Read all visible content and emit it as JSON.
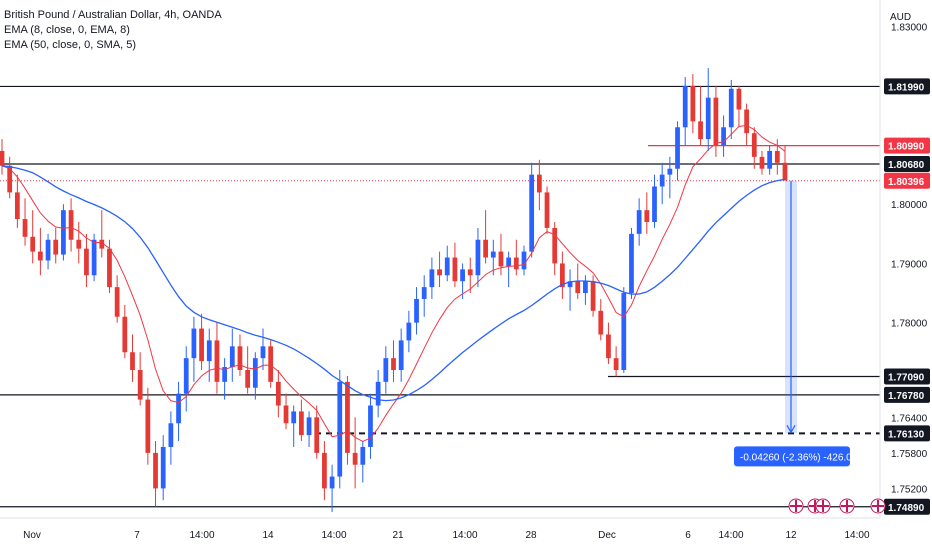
{
  "legend": {
    "title": "British Pound / Australian Dollar, 4h, OANDA",
    "ema1": "EMA (8, close, 0, EMA, 8)",
    "ema2": "EMA (50, close, 0, SMA, 5)"
  },
  "currency": "AUD",
  "colors": {
    "up": "#2962ff",
    "down": "#e53935",
    "ema_fast": "#f23645",
    "ema_slow": "#2962ff",
    "level": "#131722",
    "resistance_red": "#f23645",
    "measure": "#2962ff"
  },
  "chart_data": {
    "type": "candlestick",
    "symbol": "GBPAUD",
    "interval": "4h",
    "ylim": [
      1.747,
      1.8345
    ],
    "y_ticks": [
      "1.83000",
      "1.80000",
      "1.79000",
      "1.78000",
      "1.76400",
      "1.75800",
      "1.75200"
    ],
    "x_ticks": [
      "Nov",
      "7",
      "14:00",
      "14",
      "14:00",
      "21",
      "14:00",
      "28",
      "Dec",
      "6",
      "14:00",
      "12",
      "14:00"
    ],
    "price_levels": [
      {
        "label": "1.81990",
        "value": 1.8199,
        "style": "solid",
        "color": "dark"
      },
      {
        "label": "1.80990",
        "value": 1.8099,
        "style": "solid",
        "color": "red"
      },
      {
        "label": "1.80680",
        "value": 1.8068,
        "style": "solid",
        "color": "dark"
      },
      {
        "label": "1.80396",
        "value": 1.80396,
        "style": "dotted",
        "color": "red"
      },
      {
        "label": "1.77090",
        "value": 1.7709,
        "style": "solid",
        "color": "dark"
      },
      {
        "label": "1.76780",
        "value": 1.7678,
        "style": "solid",
        "color": "dark"
      },
      {
        "label": "1.76130",
        "value": 1.7613,
        "style": "dashed",
        "color": "dark"
      },
      {
        "label": "1.74890",
        "value": 1.7489,
        "style": "solid",
        "color": "dark"
      }
    ],
    "measurement": {
      "label": "-0.04260 (-2.36%) -426.0",
      "from": 1.80396,
      "to": 1.7613
    },
    "candles": [
      [
        1.809,
        1.811,
        1.805,
        1.8065
      ],
      [
        1.8065,
        1.808,
        1.801,
        1.802
      ],
      [
        1.802,
        1.805,
        1.796,
        1.7975
      ],
      [
        1.7975,
        1.801,
        1.793,
        1.7945
      ],
      [
        1.7945,
        1.799,
        1.79,
        1.792
      ],
      [
        1.792,
        1.796,
        1.788,
        1.7905
      ],
      [
        1.7905,
        1.795,
        1.789,
        1.794
      ],
      [
        1.794,
        1.796,
        1.79,
        1.7915
      ],
      [
        1.7915,
        1.8,
        1.7905,
        1.799
      ],
      [
        1.799,
        1.801,
        1.792,
        1.794
      ],
      [
        1.794,
        1.797,
        1.79,
        1.7925
      ],
      [
        1.7925,
        1.795,
        1.786,
        1.788
      ],
      [
        1.788,
        1.795,
        1.787,
        1.794
      ],
      [
        1.794,
        1.799,
        1.791,
        1.7925
      ],
      [
        1.7925,
        1.794,
        1.785,
        1.786
      ],
      [
        1.786,
        1.788,
        1.78,
        1.781
      ],
      [
        1.781,
        1.783,
        1.774,
        1.775
      ],
      [
        1.775,
        1.778,
        1.77,
        1.772
      ],
      [
        1.772,
        1.775,
        1.766,
        1.767
      ],
      [
        1.767,
        1.769,
        1.756,
        1.758
      ],
      [
        1.758,
        1.76,
        1.7489,
        1.752
      ],
      [
        1.752,
        1.761,
        1.75,
        1.759
      ],
      [
        1.759,
        1.765,
        1.756,
        1.763
      ],
      [
        1.763,
        1.77,
        1.76,
        1.768
      ],
      [
        1.768,
        1.776,
        1.765,
        1.774
      ],
      [
        1.774,
        1.781,
        1.77,
        1.779
      ],
      [
        1.779,
        1.7815,
        1.772,
        1.7735
      ],
      [
        1.7735,
        1.779,
        1.77,
        1.777
      ],
      [
        1.777,
        1.78,
        1.768,
        1.77
      ],
      [
        1.77,
        1.774,
        1.767,
        1.7725
      ],
      [
        1.7725,
        1.779,
        1.77,
        1.776
      ],
      [
        1.776,
        1.778,
        1.771,
        1.772
      ],
      [
        1.772,
        1.776,
        1.768,
        1.769
      ],
      [
        1.769,
        1.775,
        1.767,
        1.774
      ],
      [
        1.774,
        1.779,
        1.772,
        1.776
      ],
      [
        1.776,
        1.777,
        1.769,
        1.77
      ],
      [
        1.77,
        1.772,
        1.764,
        1.766
      ],
      [
        1.766,
        1.768,
        1.762,
        1.763
      ],
      [
        1.763,
        1.766,
        1.759,
        1.765
      ],
      [
        1.765,
        1.767,
        1.76,
        1.761
      ],
      [
        1.761,
        1.765,
        1.759,
        1.764
      ],
      [
        1.764,
        1.766,
        1.757,
        1.758
      ],
      [
        1.758,
        1.76,
        1.75,
        1.752
      ],
      [
        1.752,
        1.756,
        1.748,
        1.754
      ],
      [
        1.754,
        1.772,
        1.752,
        1.77
      ],
      [
        1.77,
        1.771,
        1.756,
        1.758
      ],
      [
        1.758,
        1.764,
        1.752,
        1.756
      ],
      [
        1.756,
        1.76,
        1.753,
        1.759
      ],
      [
        1.759,
        1.768,
        1.757,
        1.766
      ],
      [
        1.766,
        1.772,
        1.764,
        1.77
      ],
      [
        1.77,
        1.776,
        1.768,
        1.774
      ],
      [
        1.774,
        1.777,
        1.77,
        1.772
      ],
      [
        1.772,
        1.779,
        1.77,
        1.777
      ],
      [
        1.777,
        1.782,
        1.775,
        1.78
      ],
      [
        1.78,
        1.786,
        1.778,
        1.784
      ],
      [
        1.784,
        1.788,
        1.781,
        1.786
      ],
      [
        1.786,
        1.791,
        1.784,
        1.789
      ],
      [
        1.789,
        1.792,
        1.786,
        1.788
      ],
      [
        1.788,
        1.793,
        1.787,
        1.791
      ],
      [
        1.791,
        1.7935,
        1.786,
        1.787
      ],
      [
        1.787,
        1.79,
        1.784,
        1.789
      ],
      [
        1.789,
        1.791,
        1.785,
        1.788
      ],
      [
        1.788,
        1.796,
        1.786,
        1.794
      ],
      [
        1.794,
        1.799,
        1.79,
        1.791
      ],
      [
        1.791,
        1.794,
        1.788,
        1.792
      ],
      [
        1.792,
        1.795,
        1.788,
        1.7895
      ],
      [
        1.7895,
        1.792,
        1.786,
        1.791
      ],
      [
        1.791,
        1.794,
        1.788,
        1.789
      ],
      [
        1.789,
        1.793,
        1.788,
        1.792
      ],
      [
        1.792,
        1.807,
        1.791,
        1.805
      ],
      [
        1.805,
        1.8075,
        1.799,
        1.802
      ],
      [
        1.802,
        1.803,
        1.795,
        1.796
      ],
      [
        1.796,
        1.797,
        1.788,
        1.79
      ],
      [
        1.79,
        1.792,
        1.784,
        1.786
      ],
      [
        1.786,
        1.789,
        1.782,
        1.787
      ],
      [
        1.787,
        1.79,
        1.784,
        1.785
      ],
      [
        1.785,
        1.788,
        1.783,
        1.787
      ],
      [
        1.787,
        1.788,
        1.781,
        1.782
      ],
      [
        1.782,
        1.784,
        1.777,
        1.778
      ],
      [
        1.778,
        1.78,
        1.773,
        1.774
      ],
      [
        1.774,
        1.776,
        1.7709,
        1.772
      ],
      [
        1.772,
        1.786,
        1.7715,
        1.785
      ],
      [
        1.785,
        1.796,
        1.784,
        1.795
      ],
      [
        1.795,
        1.801,
        1.793,
        1.799
      ],
      [
        1.799,
        1.802,
        1.795,
        1.797
      ],
      [
        1.797,
        1.805,
        1.796,
        1.803
      ],
      [
        1.803,
        1.807,
        1.8,
        1.805
      ],
      [
        1.805,
        1.808,
        1.801,
        1.806
      ],
      [
        1.806,
        1.814,
        1.804,
        1.813
      ],
      [
        1.813,
        1.8215,
        1.81,
        1.82
      ],
      [
        1.82,
        1.822,
        1.812,
        1.814
      ],
      [
        1.814,
        1.82,
        1.81,
        1.811
      ],
      [
        1.811,
        1.823,
        1.809,
        1.818
      ],
      [
        1.818,
        1.82,
        1.808,
        1.81
      ],
      [
        1.81,
        1.815,
        1.808,
        1.813
      ],
      [
        1.813,
        1.821,
        1.811,
        1.8195
      ],
      [
        1.8195,
        1.82,
        1.813,
        1.816
      ],
      [
        1.816,
        1.817,
        1.81,
        1.812
      ],
      [
        1.812,
        1.813,
        1.806,
        1.808
      ],
      [
        1.808,
        1.809,
        1.805,
        1.806
      ],
      [
        1.806,
        1.81,
        1.805,
        1.809
      ],
      [
        1.809,
        1.811,
        1.805,
        1.807
      ],
      [
        1.807,
        1.81,
        1.804,
        1.804
      ]
    ]
  }
}
